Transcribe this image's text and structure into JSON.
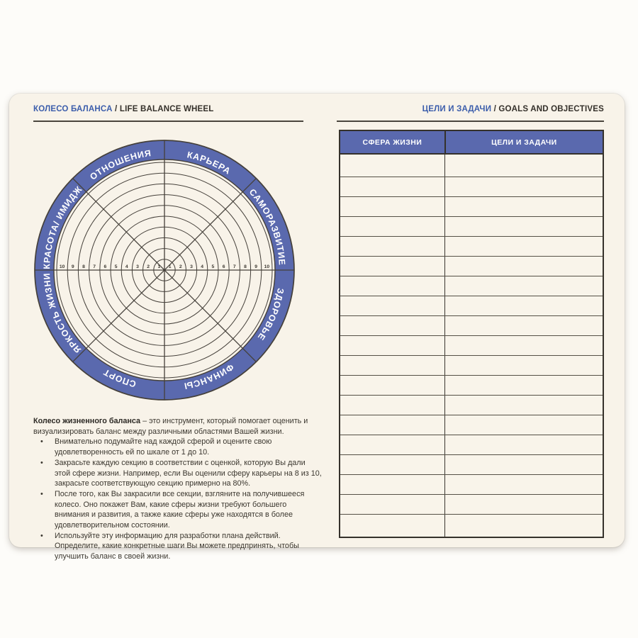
{
  "left_page": {
    "title_ru": "КОЛЕСО БАЛАНСА",
    "title_sep": " / ",
    "title_en": "LIFE BALANCE WHEEL"
  },
  "right_page": {
    "title_ru": "ЦЕЛИ И ЗАДАЧИ",
    "title_sep": " / ",
    "title_en": "GOALS AND OBJECTIVES"
  },
  "wheel": {
    "sectors_clockwise_from_top": [
      "КАРЬЕРА",
      "САМОРАЗВИТИЕ",
      "ЗДОРОВЬЕ",
      "ФИНАНСЫ",
      "СПОРТ",
      "ЯРКОСТЬ ЖИЗНИ",
      "КРАСОТА/ ИМИДЖ",
      "ОТНОШЕНИЯ"
    ],
    "scale": [
      1,
      2,
      3,
      4,
      5,
      6,
      7,
      8,
      9,
      10
    ],
    "rings": 10,
    "colors": {
      "ring_fill": "#5a69ae",
      "line": "#45403a",
      "label_text": "#ffffff",
      "number_text": "#3e3a33"
    }
  },
  "description": {
    "lead_bold": "Колесо жизненного баланса",
    "lead_rest": " – это инструмент, который помогает оценить и визуализировать баланс между различными областями Вашей жизни.",
    "bullet_char": "•",
    "bullets": [
      "Внимательно подумайте над каждой сферой и оцените свою удовлетворенность ей по шкале от 1 до 10.",
      "Закрасьте каждую секцию в соответствии с оценкой, которую Вы дали этой сфере жизни. Например, если Вы оценили сферу карьеры на 8 из 10, закрасьте соответствующую секцию примерно на 80%.",
      "После того, как Вы закрасили все секции, взгляните на получившееся колесо. Оно покажет Вам, какие сферы жизни требуют большего внимания и развития, а также какие сферы уже находятся в более удовлетворительном состоянии.",
      "Используйте эту информацию для разработки плана действий. Определите, какие конкретные шаги Вы можете предпринять, чтобы улучшить баланс в своей жизни."
    ]
  },
  "goals_table": {
    "columns": [
      "СФЕРА ЖИЗНИ",
      "ЦЕЛИ И ЗАДАЧИ"
    ],
    "empty_row_count": 19
  }
}
